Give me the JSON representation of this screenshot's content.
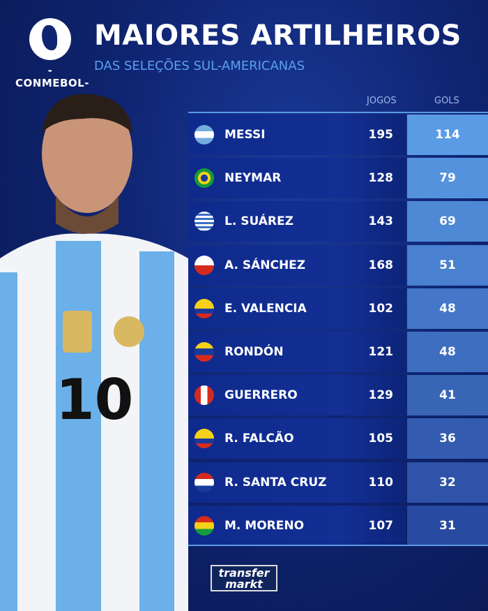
{
  "header": {
    "logo_text": "-CONMEBOL-",
    "title": "MAIORES ARTILHEIROS",
    "subtitle": "DAS SELEÇÕES SUL-AMERICANAS"
  },
  "table": {
    "columns": {
      "games": "JOGOS",
      "goals": "GOLS"
    },
    "rows": [
      {
        "name": "MESSI",
        "country": "Argentina",
        "games": "195",
        "goals": "114"
      },
      {
        "name": "NEYMAR",
        "country": "Brazil",
        "games": "128",
        "goals": "79"
      },
      {
        "name": "L. SUÁREZ",
        "country": "Uruguay",
        "games": "143",
        "goals": "69"
      },
      {
        "name": "A. SÁNCHEZ",
        "country": "Chile",
        "games": "168",
        "goals": "51"
      },
      {
        "name": "E. VALENCIA",
        "country": "Ecuador",
        "games": "102",
        "goals": "48"
      },
      {
        "name": "RONDÓN",
        "country": "Venezuela",
        "games": "121",
        "goals": "48"
      },
      {
        "name": "GUERRERO",
        "country": "Peru",
        "games": "129",
        "goals": "41"
      },
      {
        "name": "R. FALCÃO",
        "country": "Colombia",
        "games": "105",
        "goals": "36"
      },
      {
        "name": "R. SANTA CRUZ",
        "country": "Paraguay",
        "games": "110",
        "goals": "32"
      },
      {
        "name": "M. MORENO",
        "country": "Bolivia",
        "games": "107",
        "goals": "31"
      }
    ]
  },
  "player_jersey": {
    "number": "10"
  },
  "footer": {
    "brand_line1": "transfer",
    "brand_line2": "markt"
  },
  "colors": {
    "background": "#0f2470",
    "accent": "#5a9be6",
    "goals_top": "#5a9be6",
    "goals_bottom": "#2a4aa0"
  }
}
